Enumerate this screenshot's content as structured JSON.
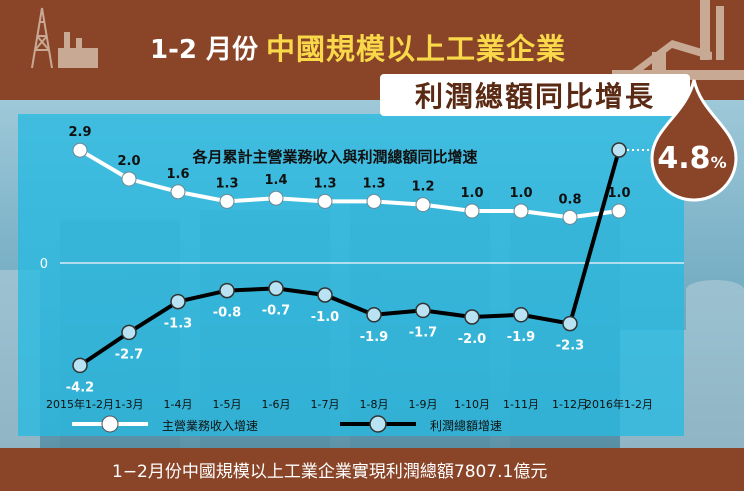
{
  "header": {
    "title_prefix": "1-2 月份",
    "title_main": "中國規模以上工業企業",
    "title_line2": "利潤總額同比增長",
    "highlight_value": "4.8",
    "highlight_unit": "%"
  },
  "footer": {
    "text": "1−2月份中國規模以上工業企業實現利潤總額7807.1億元"
  },
  "colors": {
    "brown": "#8a4528",
    "yellow": "#f9d94a",
    "panel": "#26bae2",
    "revenue_line": "#ffffff",
    "profit_line": "#000000"
  },
  "chart_data": {
    "type": "line",
    "title": "各月累計主營業務收入與利潤總額同比增速",
    "categories": [
      "2015年1-2月",
      "1-3月",
      "1-4月",
      "1-5月",
      "1-6月",
      "1-7月",
      "1-8月",
      "1-9月",
      "1-10月",
      "1-11月",
      "1-12月",
      "2016年1-2月"
    ],
    "zero_label": "0",
    "grid": false,
    "legend_position": "bottom",
    "series": [
      {
        "name": "主營業務收入增速",
        "values": [
          2.9,
          2.0,
          1.6,
          1.3,
          1.4,
          1.3,
          1.3,
          1.2,
          1.0,
          1.0,
          0.8,
          1.0
        ],
        "labels": [
          "2.9",
          "2.0",
          "1.6",
          "1.3",
          "1.4",
          "1.3",
          "1.3",
          "1.2",
          "1.0",
          "1.0",
          "0.8",
          "1.0"
        ]
      },
      {
        "name": "利潤總額增速",
        "values": [
          -4.2,
          -2.7,
          -1.3,
          -0.8,
          -0.7,
          -1.0,
          -1.9,
          -1.7,
          -2.0,
          -1.9,
          -2.3,
          4.8
        ],
        "labels": [
          "-4.2",
          "-2.7",
          "-1.3",
          "-0.8",
          "-0.7",
          "-1.0",
          "-1.9",
          "-1.7",
          "-2.0",
          "-1.9",
          "-2.3",
          ""
        ]
      }
    ]
  }
}
